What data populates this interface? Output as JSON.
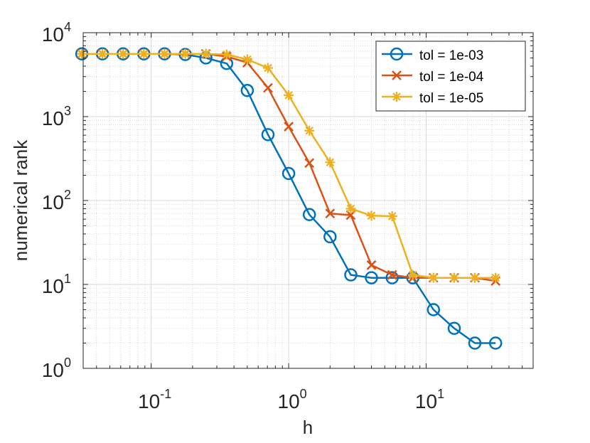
{
  "chart_data": {
    "type": "line",
    "xscale": "log",
    "yscale": "log",
    "xlabel": "h",
    "ylabel": "numerical rank",
    "xlim": [
      0.032,
      60
    ],
    "ylim": [
      1,
      10000
    ],
    "grid": true,
    "legend_position": "top-right",
    "x_ticks": [
      {
        "value": 0.1,
        "base": "10",
        "exp": "-1"
      },
      {
        "value": 1,
        "base": "10",
        "exp": "0"
      },
      {
        "value": 10,
        "base": "10",
        "exp": "1"
      }
    ],
    "y_ticks": [
      {
        "value": 1,
        "base": "10",
        "exp": "0"
      },
      {
        "value": 10,
        "base": "10",
        "exp": "1"
      },
      {
        "value": 100,
        "base": "10",
        "exp": "2"
      },
      {
        "value": 1000,
        "base": "10",
        "exp": "3"
      },
      {
        "value": 10000,
        "base": "10",
        "exp": "4"
      }
    ],
    "x": [
      0.0313,
      0.0442,
      0.0625,
      0.0884,
      0.125,
      0.177,
      0.25,
      0.354,
      0.5,
      0.707,
      1.0,
      1.414,
      2.0,
      2.83,
      4.0,
      5.66,
      8.0,
      11.3,
      16.0,
      22.6,
      32.0
    ],
    "series": [
      {
        "name": "tol = 1e-03",
        "color": "#0072BD",
        "marker": "circle",
        "values": [
          5600,
          5600,
          5600,
          5600,
          5600,
          5500,
          5000,
          4300,
          2050,
          610,
          210,
          68,
          37,
          13,
          12,
          12,
          12,
          5,
          3,
          2,
          2
        ]
      },
      {
        "name": "tol = 1e-04",
        "color": "#D95319",
        "marker": "x",
        "values": [
          5600,
          5600,
          5600,
          5600,
          5600,
          5600,
          5600,
          5200,
          4400,
          2200,
          760,
          280,
          70,
          67,
          17,
          13,
          12,
          12,
          12,
          12,
          11
        ]
      },
      {
        "name": "tol = 1e-05",
        "color": "#EDB120",
        "marker": "asterisk",
        "values": [
          5600,
          5600,
          5600,
          5600,
          5600,
          5600,
          5600,
          5500,
          4800,
          3800,
          1800,
          680,
          285,
          80,
          66,
          65,
          13,
          12,
          12,
          12,
          12
        ]
      }
    ]
  }
}
